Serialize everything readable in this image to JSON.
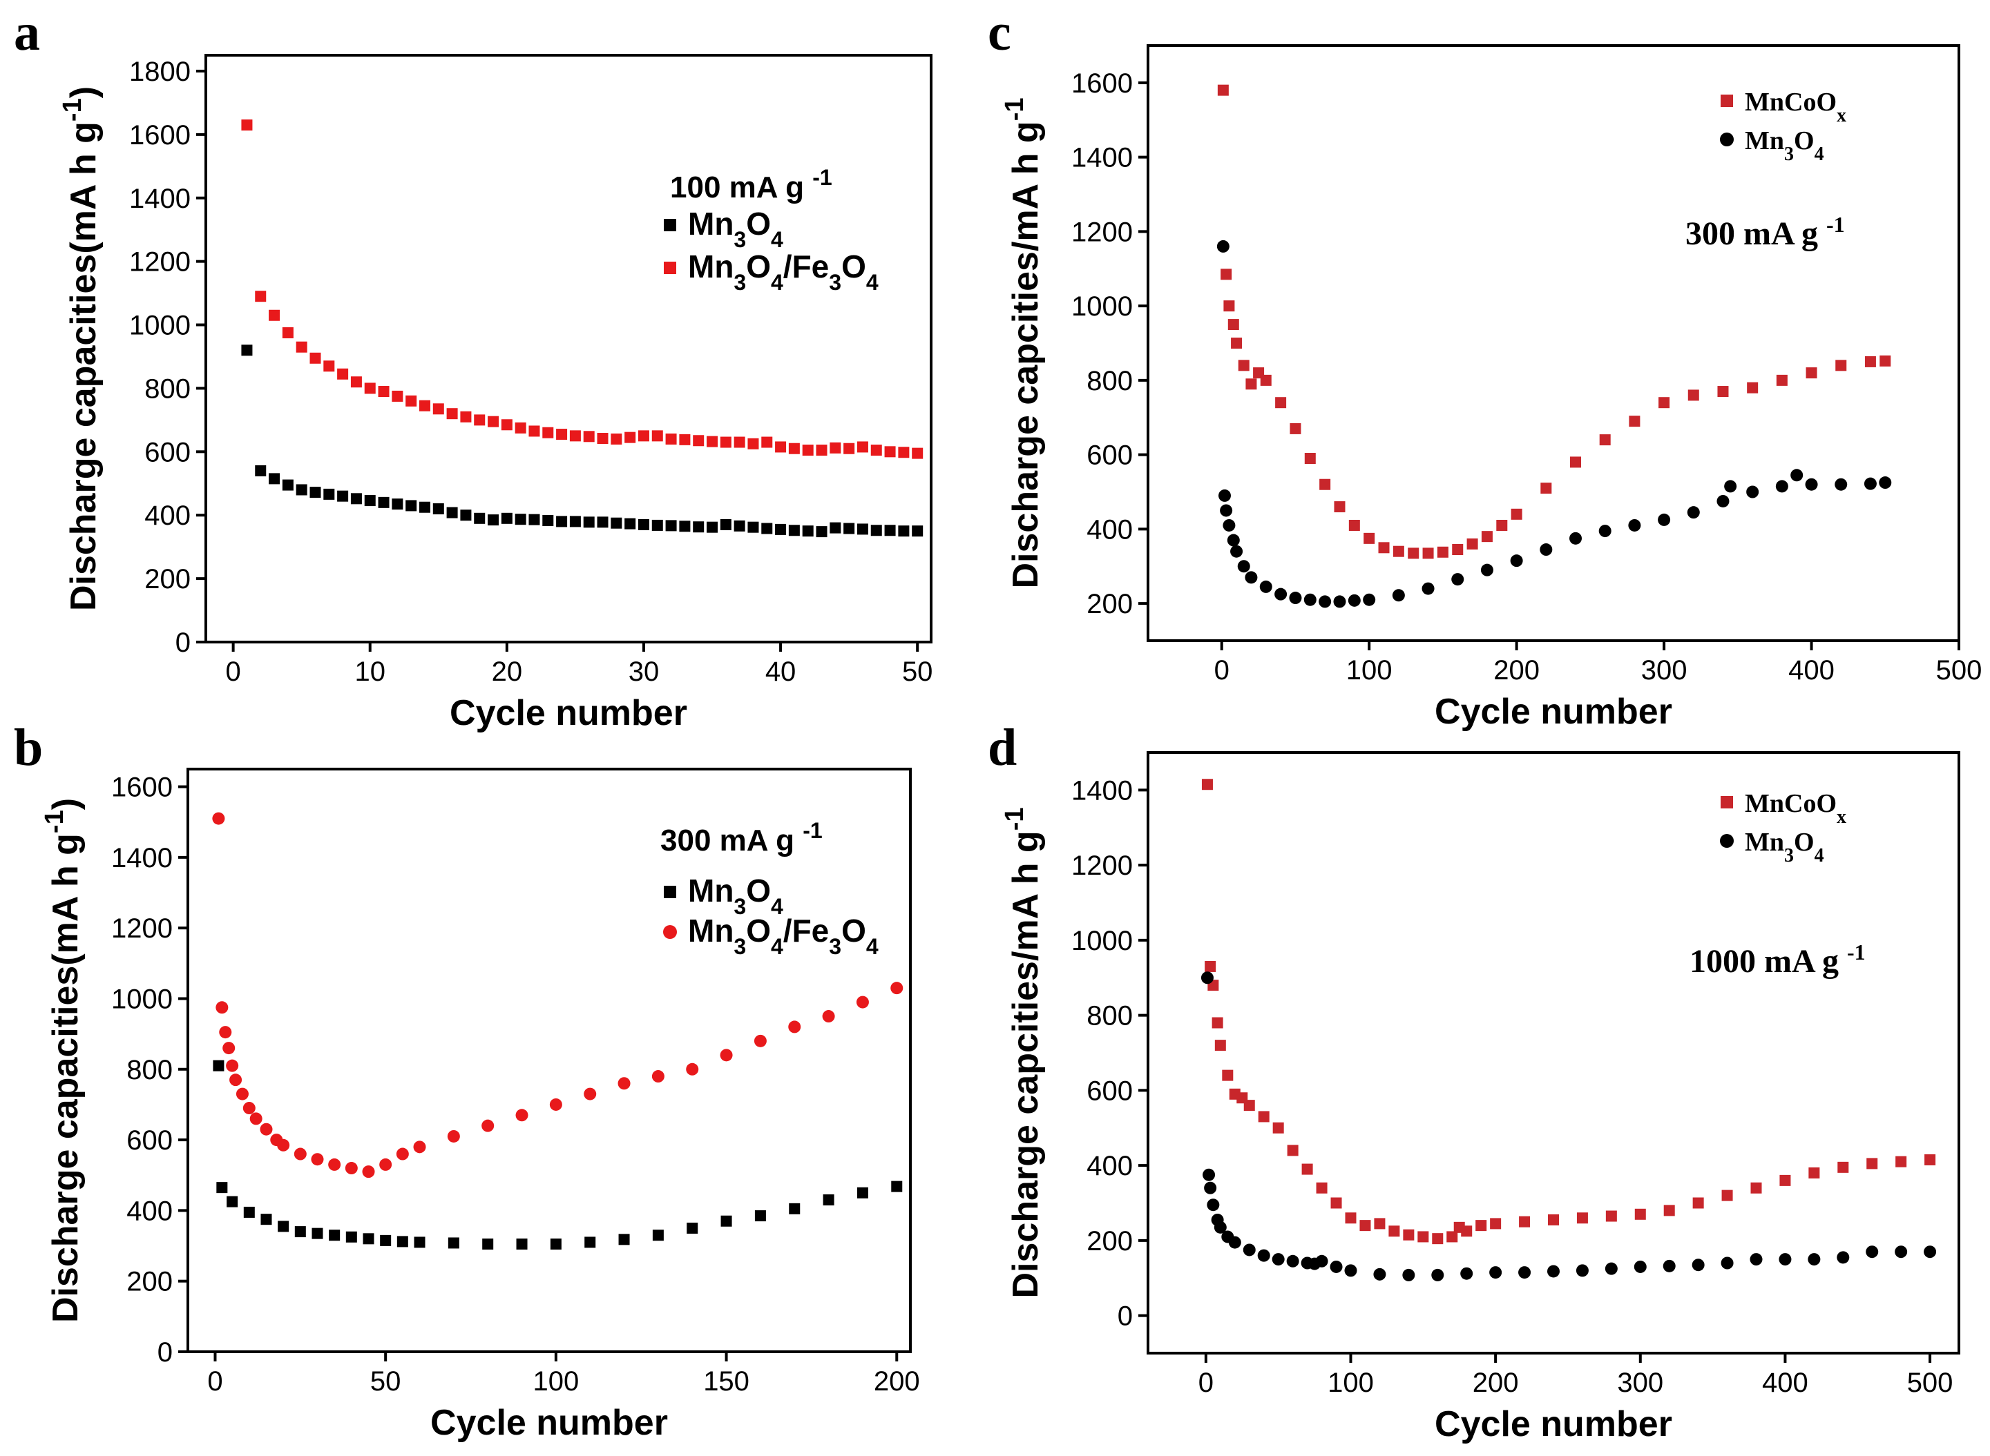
{
  "chart_data": [
    {
      "panel": "a",
      "type": "scatter",
      "xlabel": "Cycle number",
      "ylabel": "Discharge capacities(mA h g-1)",
      "ylabel_parts": {
        "main": "Discharge capacities(mA h g",
        "sup": "-1",
        "close": ")"
      },
      "xlim": [
        -2,
        51
      ],
      "ylim": [
        0,
        1850
      ],
      "xticks": [
        0,
        10,
        20,
        30,
        40,
        50
      ],
      "yticks": [
        0,
        200,
        400,
        600,
        800,
        1000,
        1200,
        1400,
        1600,
        1800
      ],
      "annotation": {
        "text": "100 mA g",
        "sup": "-1"
      },
      "legend_position": "right-middle",
      "series": [
        {
          "name": "Mn3O4",
          "name_parts": [
            [
              "Mn",
              ""
            ],
            [
              "3",
              "sub"
            ],
            [
              "O",
              ""
            ],
            [
              "4",
              "sub"
            ]
          ],
          "marker": "square",
          "color": "#000000",
          "x": [
            1,
            2,
            3,
            4,
            5,
            6,
            7,
            8,
            9,
            10,
            11,
            12,
            13,
            14,
            15,
            16,
            17,
            18,
            19,
            20,
            21,
            22,
            23,
            24,
            25,
            26,
            27,
            28,
            29,
            30,
            31,
            32,
            33,
            34,
            35,
            36,
            37,
            38,
            39,
            40,
            41,
            42,
            43,
            44,
            45,
            46,
            47,
            48,
            49,
            50
          ],
          "y": [
            920,
            540,
            515,
            495,
            480,
            472,
            466,
            460,
            452,
            446,
            440,
            435,
            430,
            425,
            420,
            408,
            400,
            390,
            385,
            390,
            387,
            386,
            383,
            380,
            380,
            378,
            378,
            375,
            373,
            370,
            368,
            367,
            365,
            363,
            362,
            370,
            366,
            362,
            358,
            355,
            352,
            350,
            348,
            360,
            358,
            356,
            352,
            352,
            350,
            350
          ]
        },
        {
          "name": "Mn3O4/Fe3O4",
          "name_parts": [
            [
              "Mn",
              ""
            ],
            [
              "3",
              "sub"
            ],
            [
              "O",
              ""
            ],
            [
              "4",
              "sub"
            ],
            [
              "/Fe",
              ""
            ],
            [
              "3",
              "sub"
            ],
            [
              "O",
              ""
            ],
            [
              "4",
              "sub"
            ]
          ],
          "marker": "square",
          "color": "#e8191b",
          "x": [
            1,
            2,
            3,
            4,
            5,
            6,
            7,
            8,
            9,
            10,
            11,
            12,
            13,
            14,
            15,
            16,
            17,
            18,
            19,
            20,
            21,
            22,
            23,
            24,
            25,
            26,
            27,
            28,
            29,
            30,
            31,
            32,
            33,
            34,
            35,
            36,
            37,
            38,
            39,
            40,
            41,
            42,
            43,
            44,
            45,
            46,
            47,
            48,
            49,
            50
          ],
          "y": [
            1630,
            1090,
            1030,
            975,
            930,
            895,
            870,
            845,
            820,
            800,
            790,
            775,
            760,
            745,
            735,
            720,
            710,
            700,
            695,
            685,
            675,
            665,
            660,
            655,
            650,
            648,
            642,
            640,
            645,
            650,
            650,
            640,
            638,
            635,
            632,
            630,
            630,
            625,
            630,
            615,
            610,
            605,
            605,
            612,
            610,
            615,
            605,
            600,
            598,
            595
          ]
        }
      ]
    },
    {
      "panel": "b",
      "type": "scatter",
      "xlabel": "Cycle number",
      "ylabel": "Discharge capacities(mA h g-1)",
      "ylabel_parts": {
        "main": "Discharge capacities(mA h g",
        "sup": "-1",
        "close": ")"
      },
      "xlim": [
        -8,
        204
      ],
      "ylim": [
        0,
        1650
      ],
      "xticks": [
        0,
        50,
        100,
        150,
        200
      ],
      "yticks": [
        0,
        200,
        400,
        600,
        800,
        1000,
        1200,
        1400,
        1600
      ],
      "annotation": {
        "text": "300 mA g",
        "sup": "-1"
      },
      "legend_position": "right-middle",
      "series": [
        {
          "name": "Mn3O4",
          "name_parts": [
            [
              "Mn",
              ""
            ],
            [
              "3",
              "sub"
            ],
            [
              "O",
              ""
            ],
            [
              "4",
              "sub"
            ]
          ],
          "marker": "square",
          "color": "#000000",
          "x": [
            1,
            2,
            5,
            10,
            15,
            20,
            25,
            30,
            35,
            40,
            45,
            50,
            55,
            60,
            70,
            80,
            90,
            100,
            110,
            120,
            130,
            140,
            150,
            160,
            170,
            180,
            190,
            200
          ],
          "y": [
            810,
            465,
            425,
            395,
            375,
            355,
            340,
            335,
            330,
            325,
            320,
            315,
            312,
            310,
            308,
            305,
            305,
            305,
            310,
            318,
            330,
            350,
            370,
            385,
            405,
            430,
            450,
            468
          ]
        },
        {
          "name": "Mn3O4/Fe3O4",
          "name_parts": [
            [
              "Mn",
              ""
            ],
            [
              "3",
              "sub"
            ],
            [
              "O",
              ""
            ],
            [
              "4",
              "sub"
            ],
            [
              "/Fe",
              ""
            ],
            [
              "3",
              "sub"
            ],
            [
              "O",
              ""
            ],
            [
              "4",
              "sub"
            ]
          ],
          "marker": "circle",
          "color": "#e8191b",
          "x": [
            1,
            2,
            3,
            4,
            5,
            6,
            8,
            10,
            12,
            15,
            18,
            20,
            25,
            30,
            35,
            40,
            45,
            50,
            55,
            60,
            70,
            80,
            90,
            100,
            110,
            120,
            130,
            140,
            150,
            160,
            170,
            180,
            190,
            200
          ],
          "y": [
            1510,
            975,
            905,
            860,
            810,
            770,
            730,
            690,
            660,
            630,
            600,
            585,
            560,
            545,
            530,
            520,
            510,
            530,
            560,
            580,
            610,
            640,
            670,
            700,
            730,
            760,
            780,
            800,
            840,
            880,
            920,
            950,
            990,
            1030
          ]
        }
      ]
    },
    {
      "panel": "c",
      "type": "scatter",
      "xlabel": "Cycle number",
      "ylabel": "Discharge capcities/mA h g-1",
      "ylabel_parts": {
        "main": "Discharge capcities/mA h g",
        "sup": "-1",
        "close": ""
      },
      "xlim": [
        -50,
        500
      ],
      "ylim": [
        100,
        1700
      ],
      "xticks": [
        0,
        100,
        200,
        300,
        400,
        500
      ],
      "yticks": [
        200,
        400,
        600,
        800,
        1000,
        1200,
        1400,
        1600
      ],
      "annotation": {
        "text": "300 mA g",
        "sup": "-1"
      },
      "legend_position": "top-right",
      "series": [
        {
          "name": "MnCoOx",
          "name_parts": [
            [
              "MnCoO",
              ""
            ],
            [
              "x",
              "sub"
            ]
          ],
          "marker": "square",
          "color": "#c8262b",
          "x": [
            1,
            3,
            5,
            8,
            10,
            15,
            20,
            25,
            30,
            40,
            50,
            60,
            70,
            80,
            90,
            100,
            110,
            120,
            130,
            140,
            150,
            160,
            170,
            180,
            190,
            200,
            220,
            240,
            260,
            280,
            300,
            320,
            340,
            360,
            380,
            400,
            420,
            440,
            450
          ],
          "y": [
            1580,
            1085,
            1000,
            950,
            900,
            840,
            790,
            820,
            800,
            740,
            670,
            590,
            520,
            460,
            410,
            375,
            350,
            340,
            335,
            335,
            338,
            345,
            360,
            380,
            410,
            440,
            510,
            580,
            640,
            690,
            740,
            760,
            770,
            780,
            800,
            820,
            840,
            850,
            852
          ]
        },
        {
          "name": "Mn3O4",
          "name_parts": [
            [
              "Mn",
              ""
            ],
            [
              "3",
              "sub"
            ],
            [
              "O",
              ""
            ],
            [
              "4",
              "sub"
            ]
          ],
          "marker": "circle",
          "color": "#000000",
          "x": [
            1,
            2,
            3,
            5,
            8,
            10,
            15,
            20,
            30,
            40,
            50,
            60,
            70,
            80,
            90,
            100,
            120,
            140,
            160,
            180,
            200,
            220,
            240,
            260,
            280,
            300,
            320,
            340,
            345,
            360,
            380,
            390,
            400,
            420,
            440,
            450
          ],
          "y": [
            1160,
            490,
            450,
            410,
            370,
            340,
            300,
            270,
            245,
            225,
            215,
            210,
            205,
            205,
            208,
            210,
            222,
            240,
            265,
            290,
            315,
            345,
            375,
            395,
            410,
            425,
            445,
            475,
            515,
            500,
            515,
            545,
            520,
            520,
            522,
            525
          ]
        }
      ]
    },
    {
      "panel": "d",
      "type": "scatter",
      "xlabel": "Cycle number",
      "ylabel": "Discharge capcities/mA h g-1",
      "ylabel_parts": {
        "main": "Discharge capcities/mA h g",
        "sup": "-1",
        "close": ""
      },
      "xlim": [
        -40,
        520
      ],
      "ylim": [
        -100,
        1500
      ],
      "xticks": [
        0,
        100,
        200,
        300,
        400,
        500
      ],
      "yticks": [
        0,
        200,
        400,
        600,
        800,
        1000,
        1200,
        1400
      ],
      "annotation": {
        "text": "1000 mA g",
        "sup": "-1"
      },
      "legend_position": "top-right",
      "series": [
        {
          "name": "MnCoOx",
          "name_parts": [
            [
              "MnCoO",
              ""
            ],
            [
              "x",
              "sub"
            ]
          ],
          "marker": "square",
          "color": "#c8262b",
          "x": [
            1,
            3,
            5,
            8,
            10,
            15,
            20,
            25,
            30,
            40,
            50,
            60,
            70,
            80,
            90,
            100,
            110,
            120,
            130,
            140,
            150,
            160,
            170,
            175,
            180,
            190,
            200,
            220,
            240,
            260,
            280,
            300,
            320,
            340,
            360,
            380,
            400,
            420,
            440,
            460,
            480,
            500
          ],
          "y": [
            1415,
            930,
            880,
            780,
            720,
            640,
            590,
            580,
            560,
            530,
            500,
            440,
            390,
            340,
            300,
            260,
            240,
            245,
            225,
            215,
            210,
            205,
            210,
            235,
            225,
            240,
            245,
            250,
            255,
            260,
            265,
            270,
            280,
            300,
            320,
            340,
            360,
            380,
            395,
            405,
            410,
            415
          ]
        },
        {
          "name": "Mn3O4",
          "name_parts": [
            [
              "Mn",
              ""
            ],
            [
              "3",
              "sub"
            ],
            [
              "O",
              ""
            ],
            [
              "4",
              "sub"
            ]
          ],
          "marker": "circle",
          "color": "#000000",
          "x": [
            1,
            2,
            3,
            5,
            8,
            10,
            15,
            20,
            30,
            40,
            50,
            60,
            70,
            75,
            80,
            90,
            100,
            120,
            140,
            160,
            180,
            200,
            220,
            240,
            260,
            280,
            300,
            320,
            340,
            360,
            380,
            400,
            420,
            440,
            460,
            480,
            500
          ],
          "y": [
            900,
            375,
            340,
            295,
            255,
            235,
            210,
            195,
            175,
            160,
            150,
            145,
            140,
            138,
            145,
            130,
            120,
            110,
            108,
            108,
            112,
            115,
            115,
            118,
            120,
            125,
            130,
            132,
            135,
            140,
            150,
            150,
            150,
            155,
            170,
            170,
            170
          ]
        }
      ]
    }
  ]
}
